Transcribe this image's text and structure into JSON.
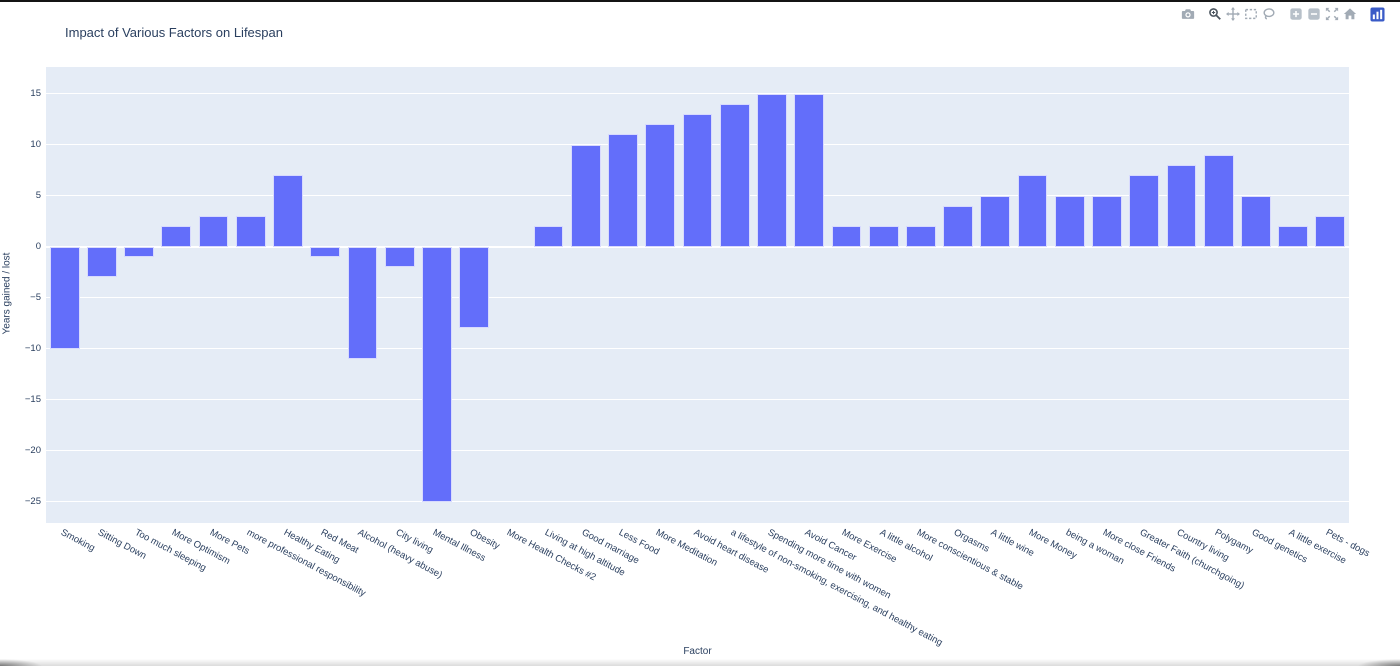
{
  "title": "Impact of Various Factors on Lifespan",
  "colors": {
    "bar": "#636efa",
    "plot_background": "#e5ecf6",
    "gridline": "#ffffff",
    "text": "#2a3f5f",
    "modebar_icon": "#a2abb5",
    "modebar_icon_active": "#4a545e",
    "plotly_logo_blue": "#3a5bc7"
  },
  "modebar": {
    "icons": [
      "camera-icon",
      "zoom-icon",
      "pan-icon",
      "box-select-icon",
      "lasso-select-icon",
      "zoom-in-icon",
      "zoom-out-icon",
      "autoscale-icon",
      "reset-axes-home-icon",
      "plotly-logo-icon"
    ]
  },
  "chart_data": {
    "type": "bar",
    "title": "Impact of Various Factors on Lifespan",
    "xlabel": "Factor",
    "ylabel": "Years gained / lost",
    "bar_color": "#636efa",
    "ylim": [
      -27.1,
      17.6
    ],
    "yticks": [
      15,
      10,
      5,
      0,
      -5,
      -10,
      -15,
      -20,
      -25
    ],
    "grid": true,
    "legend": "none",
    "categories": [
      "Smoking",
      "Sitting Down",
      "Too much sleeping",
      "More Optimism",
      "More Pets",
      "more professional responsibility",
      "Healthy Eating",
      "Red Meat",
      "Alcohol (heavy abuse)",
      "City living",
      "Mental Illness",
      "Obesity",
      "More Health Checks #2",
      "Living at high altitude",
      "Good marriage",
      "Less Food",
      "More Meditation",
      "Avoid heart disease",
      "a lifestyle of non-smoking, exercising, and healthy eating",
      "Spending more time with women",
      "Avoid Cancer",
      "More Exercise",
      "A little alcohol",
      "More conscientious & stable",
      "Orgasms",
      "A little wine",
      "More Money",
      "being a woman",
      "More close Friends",
      "Greater Faith (churchgoing)",
      "Country living",
      "Polygamy",
      "Good genetics",
      "A little exercise",
      "Pets - dogs"
    ],
    "values": [
      -10,
      -3,
      -1,
      2,
      3,
      3,
      7,
      -1,
      -11,
      -2,
      -25,
      -8,
      0,
      2,
      10,
      11,
      12,
      13,
      14,
      15,
      15,
      2,
      2,
      2,
      4,
      5,
      7,
      5,
      5,
      7,
      8,
      9,
      5,
      2,
      3
    ]
  }
}
